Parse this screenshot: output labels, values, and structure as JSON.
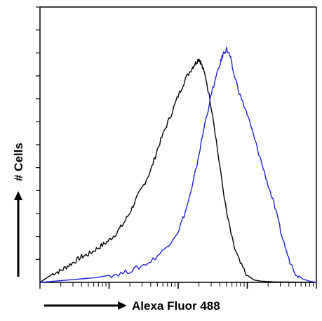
{
  "chart_data": {
    "type": "line",
    "title": "",
    "xlabel": "Alexa Fluor 488",
    "ylabel": "# Cells",
    "x_scale": "log",
    "xlim": [
      1,
      10000
    ],
    "ylim": [
      0,
      100
    ],
    "grid": false,
    "legend": "none",
    "series": [
      {
        "color": "#000000",
        "points": [
          [
            1,
            0
          ],
          [
            1.26,
            2
          ],
          [
            1.6,
            4
          ],
          [
            2,
            5
          ],
          [
            2.5,
            7
          ],
          [
            3.2,
            9
          ],
          [
            4,
            11
          ],
          [
            5,
            12
          ],
          [
            6.3,
            14
          ],
          [
            8,
            16
          ],
          [
            10,
            18
          ],
          [
            12.6,
            21
          ],
          [
            16,
            25
          ],
          [
            20,
            30
          ],
          [
            25,
            36
          ],
          [
            32,
            42
          ],
          [
            40,
            48
          ],
          [
            50,
            57
          ],
          [
            63,
            65
          ],
          [
            79,
            72
          ],
          [
            100,
            80
          ],
          [
            126,
            87
          ],
          [
            158,
            92
          ],
          [
            178,
            94
          ],
          [
            200,
            96
          ],
          [
            214,
            94
          ],
          [
            250,
            88
          ],
          [
            316,
            72
          ],
          [
            398,
            50
          ],
          [
            501,
            30
          ],
          [
            631,
            16
          ],
          [
            794,
            8
          ],
          [
            1000,
            3
          ],
          [
            1259,
            1
          ],
          [
            1585,
            0.5
          ],
          [
            2512,
            0.2
          ],
          [
            10000,
            0
          ]
        ]
      },
      {
        "color": "#1f1fd6",
        "points": [
          [
            1,
            0
          ],
          [
            1.6,
            0.5
          ],
          [
            2.5,
            1
          ],
          [
            4,
            1.5
          ],
          [
            6.3,
            2
          ],
          [
            10,
            3
          ],
          [
            16,
            4
          ],
          [
            25,
            6
          ],
          [
            40,
            9
          ],
          [
            63,
            14
          ],
          [
            100,
            22
          ],
          [
            126,
            30
          ],
          [
            158,
            40
          ],
          [
            200,
            55
          ],
          [
            251,
            70
          ],
          [
            316,
            83
          ],
          [
            398,
            93
          ],
          [
            447,
            98
          ],
          [
            501,
            100
          ],
          [
            562,
            97
          ],
          [
            631,
            90
          ],
          [
            794,
            80
          ],
          [
            1000,
            72
          ],
          [
            1259,
            62
          ],
          [
            1585,
            52
          ],
          [
            1995,
            42
          ],
          [
            2512,
            32
          ],
          [
            3162,
            20
          ],
          [
            3981,
            10
          ],
          [
            5012,
            4
          ],
          [
            6310,
            1.5
          ],
          [
            7943,
            0.5
          ],
          [
            10000,
            0
          ]
        ]
      }
    ]
  }
}
